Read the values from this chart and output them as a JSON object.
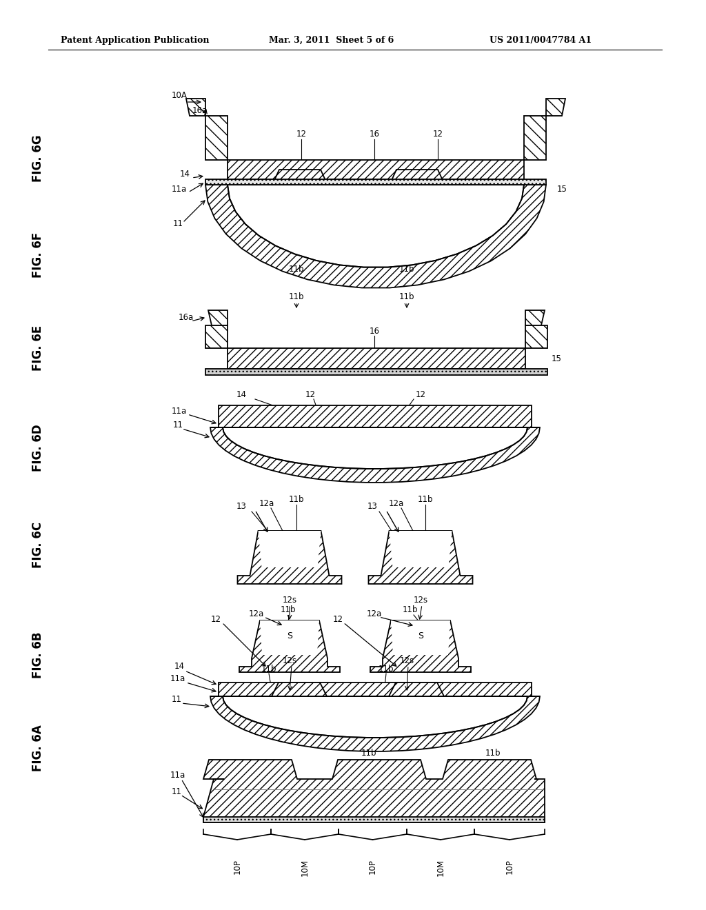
{
  "bg_color": "#ffffff",
  "lc": "#000000",
  "header_left": "Patent Application Publication",
  "header_center": "Mar. 3, 2011  Sheet 5 of 6",
  "header_right": "US 2011/0047784 A1",
  "fig_labels": [
    "FIG. 6A",
    "FIG. 6B",
    "FIG. 6C",
    "FIG. 6D",
    "FIG. 6E",
    "FIG. 6F",
    "FIG. 6G"
  ],
  "bottom_labels": [
    "10P",
    "10M",
    "10P",
    "10M",
    "10P"
  ],
  "lw": 1.3
}
